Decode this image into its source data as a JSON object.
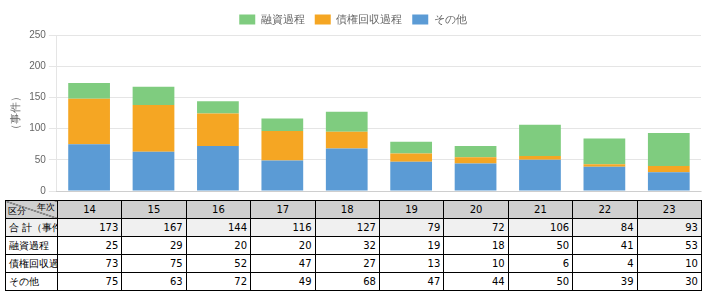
{
  "chart_data": {
    "type": "bar",
    "stacked": true,
    "ylabel": "（事件）",
    "categories": [
      "14",
      "15",
      "16",
      "17",
      "18",
      "19",
      "20",
      "21",
      "22",
      "23"
    ],
    "series": [
      {
        "name": "その他",
        "color": "#5B9BD5",
        "values": [
          75,
          63,
          72,
          49,
          68,
          47,
          44,
          50,
          39,
          30
        ]
      },
      {
        "name": "債権回収過程",
        "color": "#F5A623",
        "values": [
          73,
          75,
          52,
          47,
          27,
          13,
          10,
          6,
          4,
          10
        ]
      },
      {
        "name": "融資過程",
        "color": "#7FCC7F",
        "values": [
          25,
          29,
          20,
          20,
          32,
          19,
          18,
          50,
          41,
          53
        ]
      }
    ],
    "ylim": [
      0,
      250
    ],
    "yticks": [
      0,
      50,
      100,
      150,
      200,
      250
    ],
    "grid": true,
    "legend": "top",
    "tick_labels": "y",
    "table": {
      "corner": [
        "区分",
        "年次"
      ],
      "total_label": "合 計（事件）",
      "totals": [
        173,
        167,
        144,
        116,
        127,
        79,
        72,
        106,
        84,
        93
      ]
    }
  }
}
